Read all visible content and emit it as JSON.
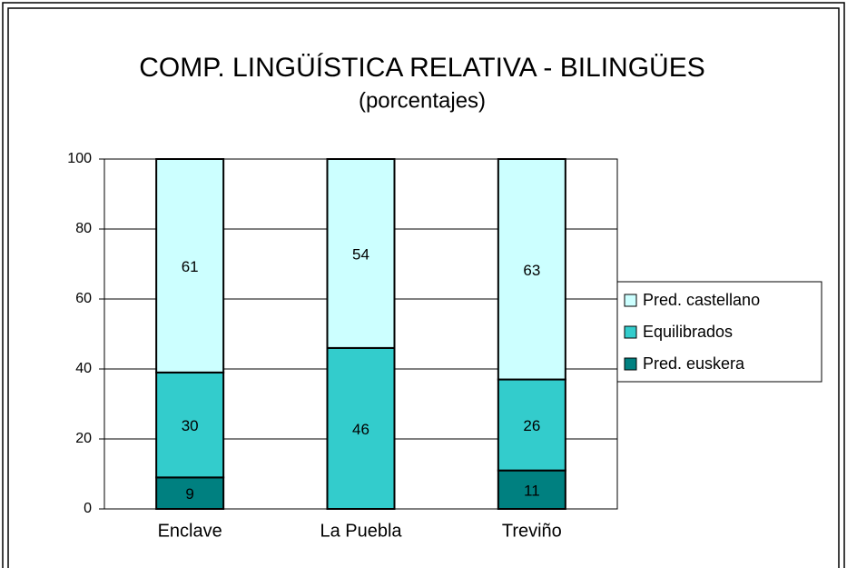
{
  "chart_data": {
    "type": "stacked_bar",
    "title": "COMP. LINGÜÍSTICA RELATIVA - BILINGÜES",
    "subtitle": "(porcentajes)",
    "categories": [
      "Enclave",
      "La Puebla",
      "Treviño"
    ],
    "series": [
      {
        "name": "Pred. euskera",
        "color": "#008080",
        "values": [
          9,
          0,
          11
        ]
      },
      {
        "name": "Equilibrados",
        "color": "#33cccc",
        "values": [
          30,
          46,
          26
        ]
      },
      {
        "name": "Pred. castellano",
        "color": "#ccffff",
        "values": [
          61,
          54,
          63
        ]
      }
    ],
    "ylim": [
      0,
      100
    ],
    "yticks": [
      0,
      20,
      40,
      60,
      80,
      100
    ],
    "grid": true,
    "legend": "right"
  }
}
